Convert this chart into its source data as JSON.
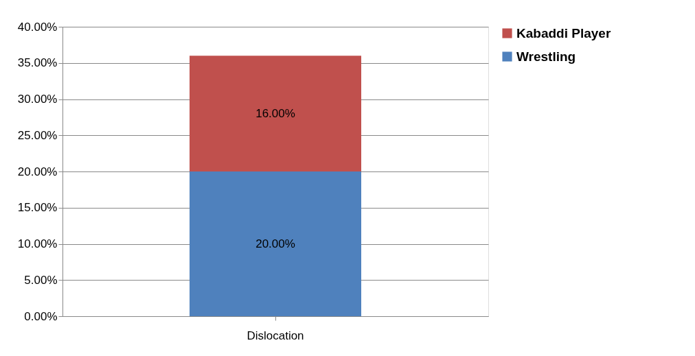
{
  "chart_data": {
    "type": "bar",
    "stacked": true,
    "categories": [
      "Dislocation"
    ],
    "series": [
      {
        "name": "Wrestling",
        "color": "#4f81bd",
        "values": [
          20
        ],
        "value_labels": [
          "20.00%"
        ]
      },
      {
        "name": "Kabaddi Player",
        "color": "#c0504d",
        "values": [
          16
        ],
        "value_labels": [
          "16.00%"
        ]
      }
    ],
    "ylim": [
      0,
      40
    ],
    "yticks": [
      {
        "value": 0,
        "label": "0.00%"
      },
      {
        "value": 5,
        "label": "5.00%"
      },
      {
        "value": 10,
        "label": "10.00%"
      },
      {
        "value": 15,
        "label": "15.00%"
      },
      {
        "value": 20,
        "label": "20.00%"
      },
      {
        "value": 25,
        "label": "25.00%"
      },
      {
        "value": 30,
        "label": "30.00%"
      },
      {
        "value": 35,
        "label": "35.00%"
      },
      {
        "value": 40,
        "label": "40.00%"
      }
    ],
    "grid": "y",
    "legend": "right"
  }
}
